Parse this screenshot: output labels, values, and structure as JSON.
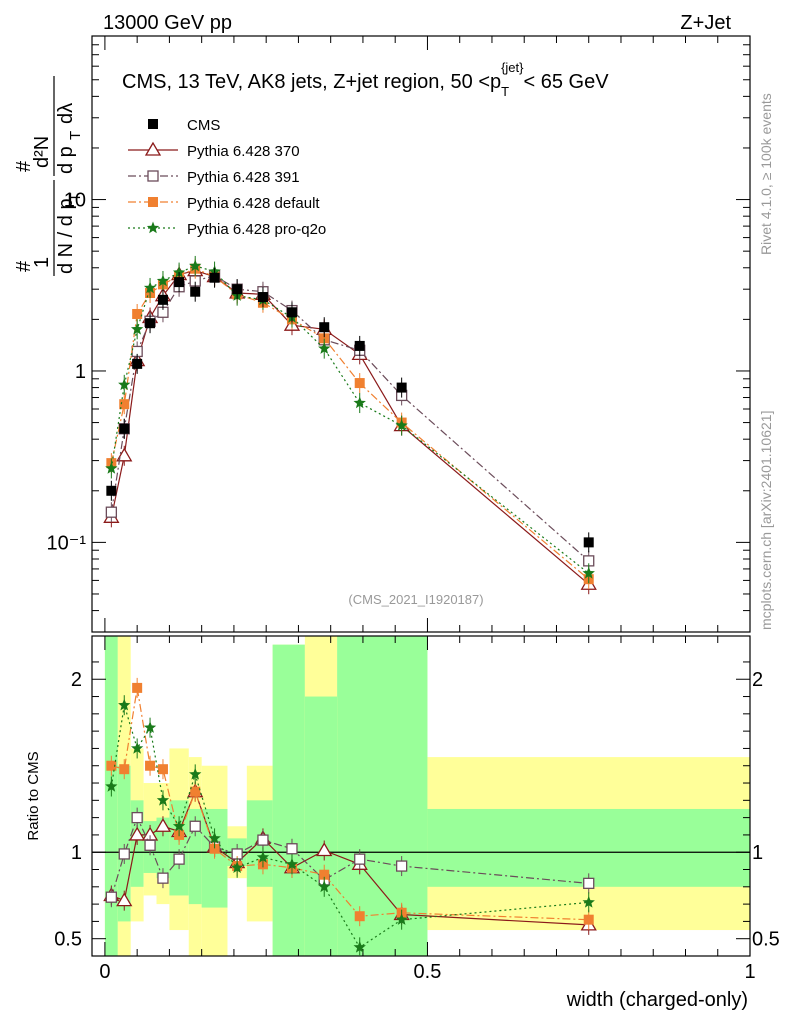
{
  "header": {
    "left": "13000 GeV pp",
    "right": "Z+Jet"
  },
  "side_labels": {
    "rivet": "Rivet 4.1.0, ≥ 100k events",
    "mcplots": "mcplots.cern.ch [arXiv:2401.10621]"
  },
  "reference": "(CMS_2021_I1920187)",
  "colors": {
    "cms": "#000000",
    "p370": "#8b1a1a",
    "p391": "#6b4c5a",
    "pdefault": "#f08030",
    "pq2o": "#1a7a1a",
    "band_yellow": "#ffff99",
    "band_green": "#99ff99"
  },
  "chart_data": [
    {
      "type": "scatter",
      "panel": "main",
      "title": "CMS, 13 TeV, AK8 jets, Z+jet region, 50 <p_T^{jet}< 65 GeV",
      "title_parts": {
        "prefix": "CMS, 13 TeV, AK8 jets, Z+jet region, 50 <p",
        "sub": "T",
        "sup": "{jet}",
        "suffix": "< 65 GeV"
      },
      "ylabel": "1/(dN/dp_T) d²N/(dp_T dλ)",
      "ylabel_parts": {
        "one": "1",
        "dn": "d N / d p",
        "t": "T",
        "d2n": "d²N",
        "dp": "d p",
        "dl": "dλ",
        "hash": "#"
      },
      "yscale": "log",
      "ylim": [
        0.03,
        90
      ],
      "xlim": [
        -0.02,
        1.0
      ],
      "yticks": [
        {
          "value": 0.1,
          "label": "10⁻¹"
        },
        {
          "value": 1,
          "label": "1"
        },
        {
          "value": 10,
          "label": "10"
        }
      ],
      "x": [
        0.01,
        0.03,
        0.05,
        0.07,
        0.09,
        0.115,
        0.14,
        0.17,
        0.205,
        0.245,
        0.29,
        0.34,
        0.395,
        0.46,
        0.75
      ],
      "series": [
        {
          "name": "CMS",
          "values": [
            0.2,
            0.46,
            1.1,
            1.9,
            2.6,
            3.3,
            2.9,
            3.5,
            3.0,
            2.7,
            2.2,
            1.8,
            1.4,
            0.8,
            0.1
          ],
          "marker": "square-filled",
          "style": "none"
        },
        {
          "name": "Pythia 6.428 370",
          "values": [
            0.14,
            0.32,
            1.15,
            2.05,
            2.75,
            3.65,
            3.85,
            3.55,
            2.85,
            2.8,
            1.85,
            1.75,
            1.25,
            0.48,
            0.057
          ],
          "marker": "triangle-open",
          "style": "solid"
        },
        {
          "name": "Pythia 6.428 391",
          "values": [
            0.15,
            0.46,
            1.3,
            1.95,
            2.2,
            3.1,
            3.35,
            3.6,
            3.0,
            2.9,
            2.25,
            1.52,
            1.32,
            0.72,
            0.078
          ],
          "marker": "square-open",
          "style": "dashdot"
        },
        {
          "name": "Pythia 6.428 default",
          "values": [
            0.29,
            0.64,
            2.15,
            2.85,
            3.2,
            3.6,
            3.95,
            3.55,
            2.8,
            2.5,
            2.0,
            1.55,
            0.85,
            0.5,
            0.061
          ],
          "marker": "square-filled",
          "style": "dashdot"
        },
        {
          "name": "Pythia 6.428 pro-q2o",
          "values": [
            0.27,
            0.83,
            1.75,
            3.05,
            3.35,
            3.75,
            4.1,
            3.8,
            2.75,
            2.6,
            2.05,
            1.35,
            0.65,
            0.48,
            0.066
          ],
          "marker": "star",
          "style": "dotted"
        }
      ]
    },
    {
      "type": "scatter",
      "panel": "ratio",
      "ylabel": "Ratio to CMS",
      "ylim": [
        0.4,
        2.25
      ],
      "xlim": [
        -0.02,
        1.0
      ],
      "xlabel": "width (charged-only)",
      "xticks": [
        {
          "value": 0,
          "label": "0"
        },
        {
          "value": 0.5,
          "label": "0.5"
        },
        {
          "value": 1,
          "label": "1"
        }
      ],
      "yticks": [
        {
          "value": 0.5,
          "label": "0.5"
        },
        {
          "value": 1,
          "label": "1"
        },
        {
          "value": 2,
          "label": "2"
        }
      ],
      "bands": [
        {
          "x0": 0.0,
          "x1": 0.02,
          "yellow": [
            0.3,
            2.3
          ],
          "green": [
            0.3,
            2.3
          ]
        },
        {
          "x0": 0.02,
          "x1": 0.04,
          "yellow": [
            0.3,
            2.3
          ],
          "green": [
            0.6,
            1.5
          ]
        },
        {
          "x0": 0.04,
          "x1": 0.06,
          "yellow": [
            0.6,
            1.6
          ],
          "green": [
            0.8,
            1.3
          ]
        },
        {
          "x0": 0.06,
          "x1": 0.08,
          "yellow": [
            0.75,
            1.4
          ],
          "green": [
            0.88,
            1.18
          ]
        },
        {
          "x0": 0.08,
          "x1": 0.1,
          "yellow": [
            0.7,
            1.4
          ],
          "green": [
            0.85,
            1.2
          ]
        },
        {
          "x0": 0.1,
          "x1": 0.13,
          "yellow": [
            0.55,
            1.6
          ],
          "green": [
            0.75,
            1.3
          ]
        },
        {
          "x0": 0.13,
          "x1": 0.15,
          "yellow": [
            0.3,
            1.55
          ],
          "green": [
            0.7,
            1.25
          ]
        },
        {
          "x0": 0.15,
          "x1": 0.19,
          "yellow": [
            0.3,
            1.5
          ],
          "green": [
            0.68,
            1.25
          ]
        },
        {
          "x0": 0.19,
          "x1": 0.22,
          "yellow": [
            0.85,
            1.15
          ],
          "green": [
            0.92,
            1.08
          ]
        },
        {
          "x0": 0.22,
          "x1": 0.26,
          "yellow": [
            0.6,
            1.5
          ],
          "green": [
            0.8,
            1.3
          ]
        },
        {
          "x0": 0.26,
          "x1": 0.31,
          "yellow": [
            0.3,
            2.2
          ],
          "green": [
            0.3,
            2.2
          ]
        },
        {
          "x0": 0.31,
          "x1": 0.36,
          "yellow": [
            0.3,
            2.3
          ],
          "green": [
            0.4,
            1.9
          ]
        },
        {
          "x0": 0.36,
          "x1": 0.5,
          "yellow": [
            0.3,
            2.3
          ],
          "green": [
            0.3,
            2.3
          ]
        },
        {
          "x0": 0.5,
          "x1": 1.0,
          "yellow": [
            0.55,
            1.55
          ],
          "green": [
            0.8,
            1.25
          ]
        }
      ],
      "x": [
        0.01,
        0.03,
        0.05,
        0.07,
        0.09,
        0.115,
        0.14,
        0.17,
        0.205,
        0.245,
        0.29,
        0.34,
        0.395,
        0.46,
        0.75
      ],
      "series": [
        {
          "name": "Pythia 6.428 370",
          "values": [
            0.75,
            0.72,
            1.1,
            1.1,
            1.15,
            1.12,
            1.35,
            1.03,
            0.94,
            1.08,
            0.91,
            1.01,
            0.93,
            0.64,
            0.58
          ],
          "marker": "triangle-open",
          "style": "solid"
        },
        {
          "name": "Pythia 6.428 391",
          "values": [
            0.74,
            0.99,
            1.2,
            1.04,
            0.85,
            0.96,
            1.15,
            1.03,
            0.99,
            1.07,
            1.02,
            0.84,
            0.96,
            0.92,
            0.82
          ],
          "marker": "square-open",
          "style": "dashdot"
        },
        {
          "name": "Pythia 6.428 default",
          "values": [
            1.5,
            1.48,
            1.95,
            1.5,
            1.48,
            1.1,
            1.35,
            1.02,
            0.92,
            0.93,
            0.91,
            0.87,
            0.63,
            0.65,
            0.61
          ],
          "marker": "square-filled",
          "style": "dashdot"
        },
        {
          "name": "Pythia 6.428 pro-q2o",
          "values": [
            1.38,
            1.85,
            1.6,
            1.72,
            1.3,
            1.15,
            1.45,
            1.08,
            0.91,
            0.97,
            0.93,
            0.8,
            0.45,
            0.61,
            0.71
          ],
          "marker": "star",
          "style": "dotted"
        }
      ]
    }
  ]
}
